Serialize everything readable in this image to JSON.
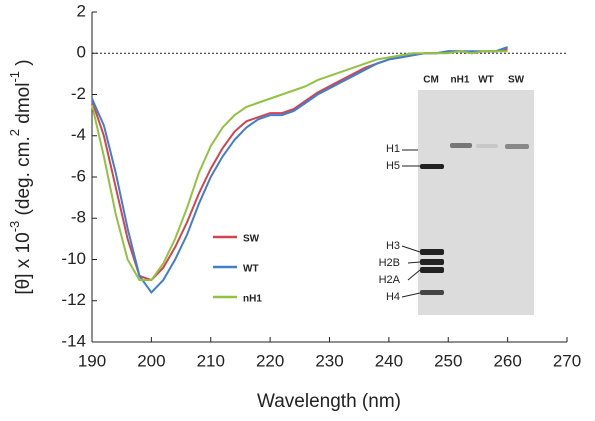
{
  "chart_data": {
    "type": "line",
    "xlabel": "Wavelength (nm)",
    "ylabel_parts": [
      "[θ] x 10",
      "-3",
      " (deg. cm.",
      "2",
      " dmol",
      "-1",
      " )"
    ],
    "x": [
      190,
      192,
      194,
      196,
      198,
      200,
      202,
      204,
      206,
      208,
      210,
      212,
      214,
      216,
      218,
      220,
      222,
      224,
      226,
      228,
      230,
      232,
      234,
      236,
      238,
      240,
      242,
      244,
      246,
      248,
      250,
      252,
      254,
      256,
      258,
      260
    ],
    "series": [
      {
        "name": "SW",
        "color": "#d2444f",
        "values": [
          -2.3,
          -4,
          -6.5,
          -9,
          -10.8,
          -11,
          -10.4,
          -9.4,
          -8.2,
          -6.8,
          -5.6,
          -4.6,
          -3.8,
          -3.3,
          -3.1,
          -2.9,
          -2.9,
          -2.7,
          -2.3,
          -1.9,
          -1.6,
          -1.3,
          -1,
          -0.7,
          -0.5,
          -0.3,
          -0.2,
          -0.1,
          0,
          0,
          0.1,
          0.1,
          0,
          0.1,
          0.1,
          0.2
        ]
      },
      {
        "name": "WT",
        "color": "#3f7fcf",
        "values": [
          -2.2,
          -3.5,
          -5.8,
          -8.5,
          -10.8,
          -11.6,
          -11,
          -10,
          -8.8,
          -7.3,
          -6,
          -5,
          -4.2,
          -3.6,
          -3.2,
          -3,
          -3,
          -2.8,
          -2.4,
          -2,
          -1.7,
          -1.4,
          -1.1,
          -0.8,
          -0.5,
          -0.3,
          -0.2,
          -0.1,
          0,
          0,
          0.1,
          0.1,
          0.1,
          0.1,
          0.1,
          0.3
        ]
      },
      {
        "name": "nH1",
        "color": "#93c23f",
        "values": [
          -2.5,
          -5,
          -7.8,
          -10,
          -11,
          -11,
          -10.2,
          -9,
          -7.5,
          -5.8,
          -4.5,
          -3.6,
          -3,
          -2.6,
          -2.4,
          -2.2,
          -2,
          -1.8,
          -1.6,
          -1.3,
          -1.1,
          -0.9,
          -0.7,
          -0.5,
          -0.3,
          -0.2,
          -0.1,
          0,
          0,
          0,
          0,
          0.1,
          0,
          0.1,
          0.1,
          0.1
        ]
      }
    ],
    "xlim": [
      190,
      270
    ],
    "xticks": [
      190,
      200,
      210,
      220,
      230,
      240,
      250,
      260,
      270
    ],
    "ylim": [
      -14,
      2
    ],
    "yticks": [
      -14,
      -12,
      -10,
      -8,
      -6,
      -4,
      -2,
      0,
      2
    ],
    "inset": {
      "lane_labels": [
        "CM",
        "nH1",
        "WT",
        "SW"
      ],
      "band_labels": [
        "H1",
        "H5",
        "H3",
        "H2B",
        "H2A",
        "H4"
      ]
    }
  }
}
